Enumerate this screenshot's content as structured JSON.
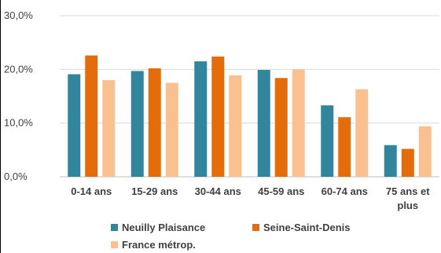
{
  "chart_data": {
    "type": "bar",
    "categories": [
      [
        "0-14 ans"
      ],
      [
        "15-29 ans"
      ],
      [
        "30-44 ans"
      ],
      [
        "45-59 ans"
      ],
      [
        "60-74 ans"
      ],
      [
        "75 ans et",
        "plus"
      ]
    ],
    "series": [
      {
        "name": "Neuilly Plaisance",
        "color": "#31859c",
        "values": [
          19.1,
          19.7,
          21.5,
          19.9,
          13.3,
          5.9
        ]
      },
      {
        "name": "Seine-Saint-Denis",
        "color": "#e46c0a",
        "values": [
          22.6,
          20.2,
          22.4,
          18.4,
          11.1,
          5.2
        ]
      },
      {
        "name": "France métrop.",
        "color": "#fac090",
        "values": [
          18.0,
          17.5,
          18.9,
          20.0,
          16.3,
          9.4
        ]
      }
    ],
    "yticks": [
      "0,0%",
      "10,0%",
      "20,0%",
      "30,0%"
    ],
    "ytick_values": [
      0,
      10,
      20,
      30
    ],
    "ylim": [
      0,
      30
    ],
    "grid": true,
    "legend_position": "bottom"
  }
}
